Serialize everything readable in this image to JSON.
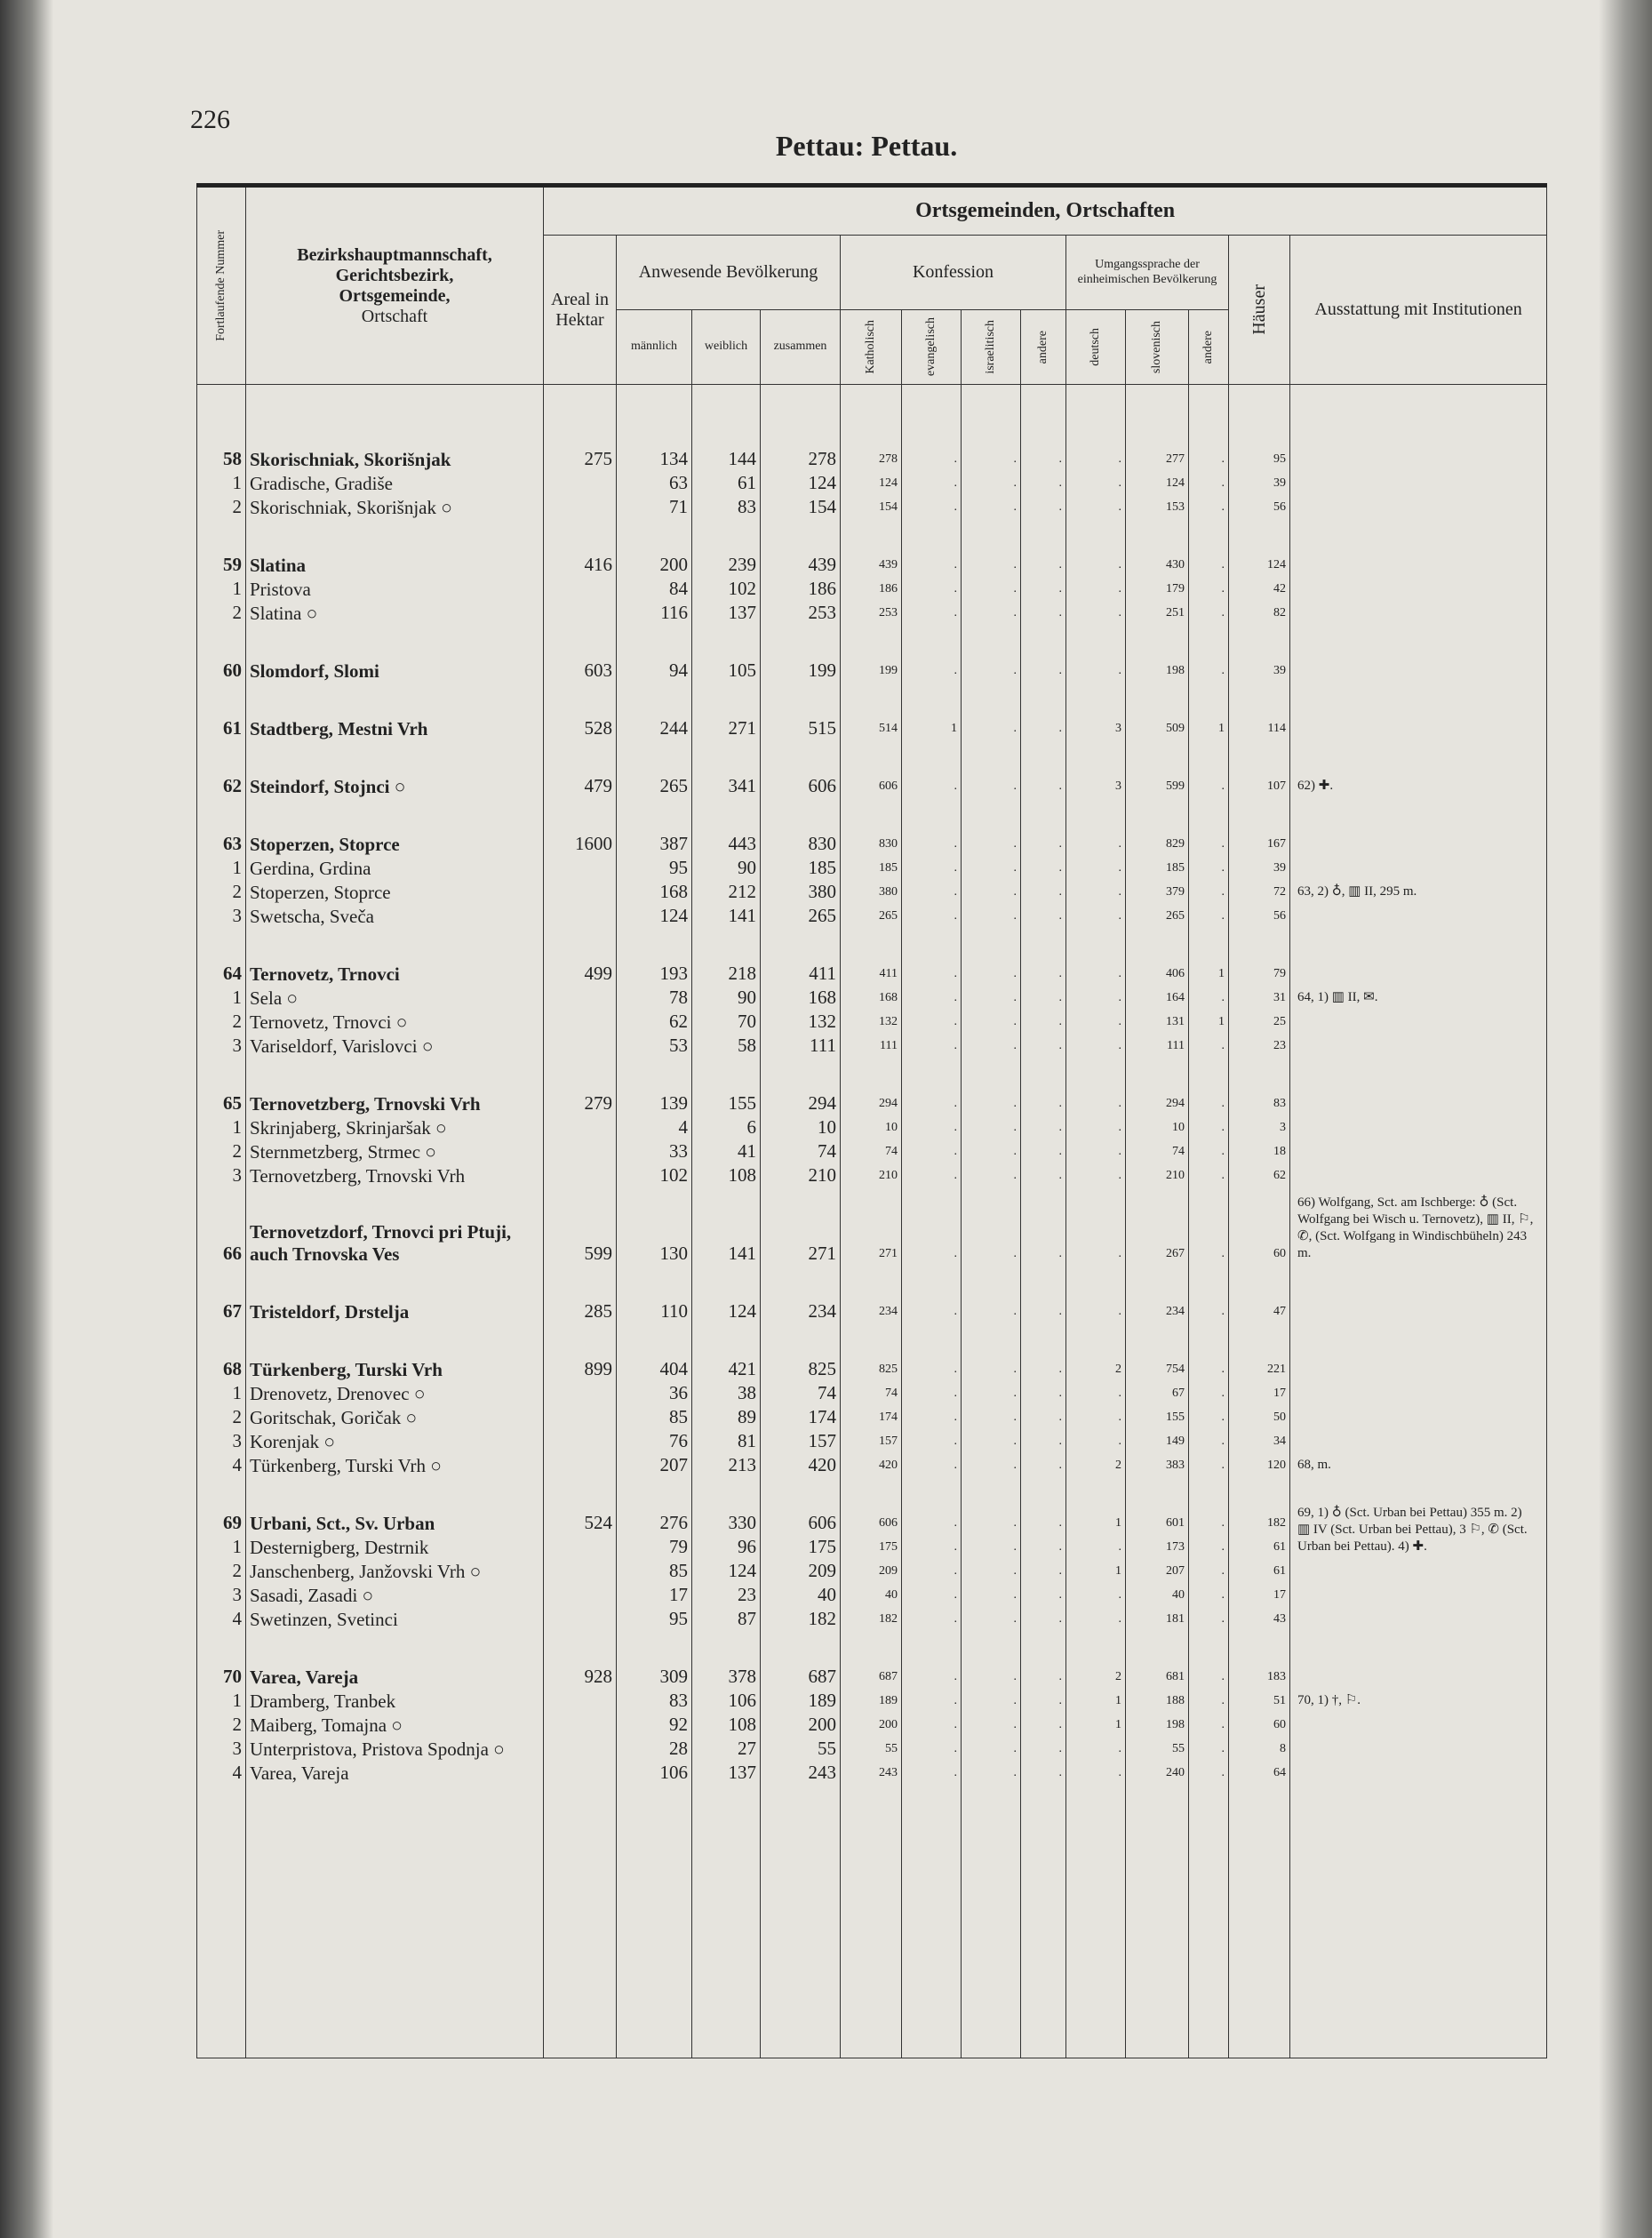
{
  "header": {
    "page_number": "226",
    "title": "Pettau: Pettau."
  },
  "table": {
    "column_headers": {
      "number": "Fortlaufende Nummer",
      "name": [
        "Bezirkshauptmannschaft,",
        "Gerichtsbezirk,",
        "Ortsgemeinde,",
        "Ortschaft"
      ],
      "top": "Ortsgemeinden, Ortschaften",
      "areal": "Areal in Hektar",
      "population": "Anwesende Bevölkerung",
      "population_sub": [
        "männlich",
        "weiblich",
        "zusammen"
      ],
      "confession": "Konfession",
      "confession_sub": [
        "Katholisch",
        "evangelisch",
        "israelitisch",
        "andere"
      ],
      "language": "Umgangssprache der einheimischen Bevölkerung",
      "language_sub": [
        "deutsch",
        "slovenisch",
        "andere"
      ],
      "houses": "Häuser",
      "institutions": "Ausstattung mit Institutionen"
    },
    "groups": [
      {
        "rows": [
          [
            "58",
            "Skorischniak, Skorišnjak",
            "275",
            "134",
            "144",
            "278",
            "278",
            ".",
            ".",
            ".",
            ".",
            "277",
            ".",
            "95",
            null
          ],
          [
            "1",
            "Gradische, Gradiše",
            null,
            "63",
            "61",
            "124",
            "124",
            ".",
            ".",
            ".",
            ".",
            "124",
            ".",
            "39",
            null
          ],
          [
            "2",
            "Skorischniak, Skorišnjak ○",
            null,
            "71",
            "83",
            "154",
            "154",
            ".",
            ".",
            ".",
            ".",
            "153",
            ".",
            "56",
            null
          ]
        ]
      },
      {
        "rows": [
          [
            "59",
            "Slatina",
            "416",
            "200",
            "239",
            "439",
            "439",
            ".",
            ".",
            ".",
            ".",
            "430",
            ".",
            "124",
            null
          ],
          [
            "1",
            "Pristova",
            null,
            "84",
            "102",
            "186",
            "186",
            ".",
            ".",
            ".",
            ".",
            "179",
            ".",
            "42",
            null
          ],
          [
            "2",
            "Slatina ○",
            null,
            "116",
            "137",
            "253",
            "253",
            ".",
            ".",
            ".",
            ".",
            "251",
            ".",
            "82",
            null
          ]
        ]
      },
      {
        "rows": [
          [
            "60",
            "Slomdorf, Slomi",
            "603",
            "94",
            "105",
            "199",
            "199",
            ".",
            ".",
            ".",
            ".",
            "198",
            ".",
            "39",
            null
          ]
        ]
      },
      {
        "rows": [
          [
            "61",
            "Stadtberg, Mestni Vrh",
            "528",
            "244",
            "271",
            "515",
            "514",
            "1",
            ".",
            ".",
            "3",
            "509",
            "1",
            "114",
            null
          ]
        ]
      },
      {
        "rows": [
          [
            "62",
            "Steindorf, Stojnci ○",
            "479",
            "265",
            "341",
            "606",
            "606",
            ".",
            ".",
            ".",
            "3",
            "599",
            ".",
            "107",
            "62) ✚."
          ]
        ]
      },
      {
        "rows": [
          [
            "63",
            "Stoperzen, Stoprce",
            "1600",
            "387",
            "443",
            "830",
            "830",
            ".",
            ".",
            ".",
            ".",
            "829",
            ".",
            "167",
            null
          ],
          [
            "1",
            "Gerdina, Grdina",
            null,
            "95",
            "90",
            "185",
            "185",
            ".",
            ".",
            ".",
            ".",
            "185",
            ".",
            "39",
            null
          ],
          [
            "2",
            "Stoperzen, Stoprce",
            null,
            "168",
            "212",
            "380",
            "380",
            ".",
            ".",
            ".",
            ".",
            "379",
            ".",
            "72",
            "63, 2) ♁, ▥ II, 295 m."
          ],
          [
            "3",
            "Swetscha, Sveča",
            null,
            "124",
            "141",
            "265",
            "265",
            ".",
            ".",
            ".",
            ".",
            "265",
            ".",
            "56",
            null
          ]
        ]
      },
      {
        "rows": [
          [
            "64",
            "Ternovetz, Trnovci",
            "499",
            "193",
            "218",
            "411",
            "411",
            ".",
            ".",
            ".",
            ".",
            "406",
            "1",
            "79",
            null
          ],
          [
            "1",
            "Sela ○",
            null,
            "78",
            "90",
            "168",
            "168",
            ".",
            ".",
            ".",
            ".",
            "164",
            ".",
            "31",
            "64, 1) ▥ II, ✉."
          ],
          [
            "2",
            "Ternovetz, Trnovci ○",
            null,
            "62",
            "70",
            "132",
            "132",
            ".",
            ".",
            ".",
            ".",
            "131",
            "1",
            "25",
            null
          ],
          [
            "3",
            "Variseldorf, Varislovci ○",
            null,
            "53",
            "58",
            "111",
            "111",
            ".",
            ".",
            ".",
            ".",
            "111",
            ".",
            "23",
            null
          ]
        ]
      },
      {
        "rows": [
          [
            "65",
            "Ternovetzberg, Trnovski Vrh",
            "279",
            "139",
            "155",
            "294",
            "294",
            ".",
            ".",
            ".",
            ".",
            "294",
            ".",
            "83",
            null
          ],
          [
            "1",
            "Skrinjaberg, Skrinjaršak ○",
            null,
            "4",
            "6",
            "10",
            "10",
            ".",
            ".",
            ".",
            ".",
            "10",
            ".",
            "3",
            null
          ],
          [
            "2",
            "Sternmetzberg, Strmec ○",
            null,
            "33",
            "41",
            "74",
            "74",
            ".",
            ".",
            ".",
            ".",
            "74",
            ".",
            "18",
            null
          ],
          [
            "3",
            "Ternovetzberg, Trnovski Vrh",
            null,
            "102",
            "108",
            "210",
            "210",
            ".",
            ".",
            ".",
            ".",
            "210",
            ".",
            "62",
            null
          ]
        ]
      },
      {
        "rows": [
          [
            "66",
            "Ternovetzdorf, Trnovci pri Ptuji, auch Trnovska Ves",
            "599",
            "130",
            "141",
            "271",
            "271",
            ".",
            ".",
            ".",
            ".",
            "267",
            ".",
            "60",
            "66) Wolfgang, Sct. am Ischberge: ♁ (Sct. Wolfgang bei Wisch u. Ternovetz), ▥ II, ⚐, ✆, (Sct. Wolfgang in Windischbüheln) 243 m."
          ]
        ]
      },
      {
        "rows": [
          [
            "67",
            "Tristeldorf, Drstelja",
            "285",
            "110",
            "124",
            "234",
            "234",
            ".",
            ".",
            ".",
            ".",
            "234",
            ".",
            "47",
            null
          ]
        ]
      },
      {
        "rows": [
          [
            "68",
            "Türkenberg, Turski Vrh",
            "899",
            "404",
            "421",
            "825",
            "825",
            ".",
            ".",
            ".",
            "2",
            "754",
            ".",
            "221",
            null
          ],
          [
            "1",
            "Drenovetz, Drenovec ○",
            null,
            "36",
            "38",
            "74",
            "74",
            ".",
            ".",
            ".",
            ".",
            "67",
            ".",
            "17",
            null
          ],
          [
            "2",
            "Goritschak, Goričak ○",
            null,
            "85",
            "89",
            "174",
            "174",
            ".",
            ".",
            ".",
            ".",
            "155",
            ".",
            "50",
            null
          ],
          [
            "3",
            "Korenjak ○",
            null,
            "76",
            "81",
            "157",
            "157",
            ".",
            ".",
            ".",
            ".",
            "149",
            ".",
            "34",
            null
          ],
          [
            "4",
            "Türkenberg, Turski Vrh ○",
            null,
            "207",
            "213",
            "420",
            "420",
            ".",
            ".",
            ".",
            "2",
            "383",
            ".",
            "120",
            "68, m."
          ]
        ]
      },
      {
        "rows": [
          [
            "69",
            "Urbani, Sct., Sv. Urban",
            "524",
            "276",
            "330",
            "606",
            "606",
            ".",
            ".",
            ".",
            "1",
            "601",
            ".",
            "182",
            null
          ],
          [
            "1",
            "Desternigberg, Destrnik",
            null,
            "79",
            "96",
            "175",
            "175",
            ".",
            ".",
            ".",
            ".",
            "173",
            ".",
            "61",
            "69, 1) ♁ (Sct. Urban bei Pettau) 355 m. 2) ▥ IV (Sct. Urban bei Pettau), 3 ⚐, ✆ (Sct. Urban bei Pettau). 4) ✚."
          ],
          [
            "2",
            "Janschenberg, Janžovski Vrh ○",
            null,
            "85",
            "124",
            "209",
            "209",
            ".",
            ".",
            ".",
            "1",
            "207",
            ".",
            "61",
            null
          ],
          [
            "3",
            "Sasadi, Zasadi ○",
            null,
            "17",
            "23",
            "40",
            "40",
            ".",
            ".",
            ".",
            ".",
            "40",
            ".",
            "17",
            null
          ],
          [
            "4",
            "Swetinzen, Svetinci",
            null,
            "95",
            "87",
            "182",
            "182",
            ".",
            ".",
            ".",
            ".",
            "181",
            ".",
            "43",
            null
          ]
        ]
      },
      {
        "rows": [
          [
            "70",
            "Varea, Vareja",
            "928",
            "309",
            "378",
            "687",
            "687",
            ".",
            ".",
            ".",
            "2",
            "681",
            ".",
            "183",
            null
          ],
          [
            "1",
            "Dramberg, Tranbek",
            null,
            "83",
            "106",
            "189",
            "189",
            ".",
            ".",
            ".",
            "1",
            "188",
            ".",
            "51",
            "70, 1) †, ⚐."
          ],
          [
            "2",
            "Maiberg, Tomajna ○",
            null,
            "92",
            "108",
            "200",
            "200",
            ".",
            ".",
            ".",
            "1",
            "198",
            ".",
            "60",
            null
          ],
          [
            "3",
            "Unterpristova, Pristova Spodnja ○",
            null,
            "28",
            "27",
            "55",
            "55",
            ".",
            ".",
            ".",
            ".",
            "55",
            ".",
            "8",
            null
          ],
          [
            "4",
            "Varea, Vareja",
            null,
            "106",
            "137",
            "243",
            "243",
            ".",
            ".",
            ".",
            ".",
            "240",
            ".",
            "64",
            null
          ]
        ]
      }
    ]
  }
}
